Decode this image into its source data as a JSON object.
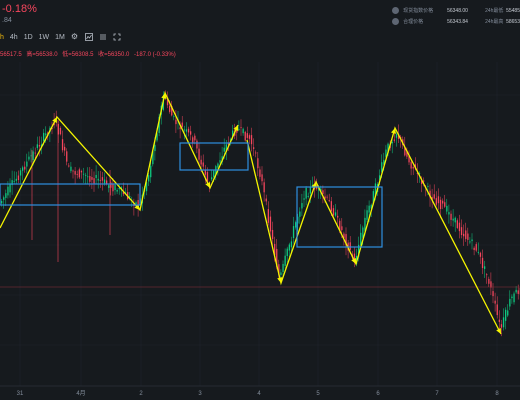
{
  "header": {
    "change_pct": "-0.18%",
    "sub_value": ".84",
    "toolbar": [
      {
        "label": "h",
        "active": true
      },
      {
        "label": "4h",
        "active": false
      },
      {
        "label": "1D",
        "active": false
      },
      {
        "label": "1W",
        "active": false
      },
      {
        "label": "1M",
        "active": false
      }
    ],
    "ohlc": [
      "56517.5",
      "高=56538.0",
      "低=56308.5",
      "收=56350.0",
      "-187.0 (-0.33%)"
    ]
  },
  "stats": [
    {
      "label": "现货指数价格",
      "value": "56348.00",
      "label2": "24h最低",
      "value2": "55485"
    },
    {
      "label": "合理价格",
      "value": "56343.84",
      "label2": "24h最高",
      "value2": "58653"
    }
  ],
  "colors": {
    "background": "#161a1e",
    "up": "#0ecb81",
    "down": "#f6465d",
    "annotation_line": "#f5f500",
    "annotation_box": "#2f8fe0",
    "price_line": "#8b2f3a"
  },
  "chart_data": {
    "type": "candlestick",
    "x_tick_labels": [
      "31",
      "4月",
      "2",
      "3",
      "4",
      "5",
      "6",
      "7",
      "8"
    ],
    "grid": true,
    "horizontal_price_line": true,
    "annotations": {
      "zigzag_lines": 2,
      "boxes": 3
    }
  }
}
